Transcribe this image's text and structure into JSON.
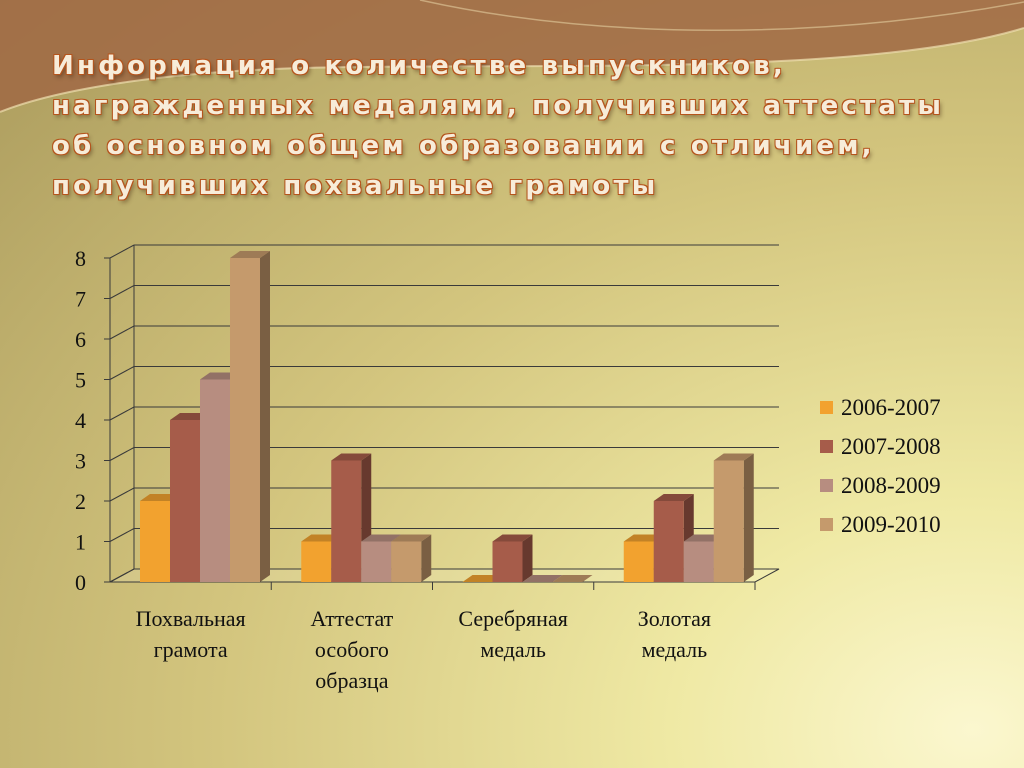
{
  "title": "Информация о количестве выпускников, награжденных медалями, получивших аттестаты об основном общем образовании с отличием, получивших похвальные грамоты",
  "colors": {
    "background": "#e6dd98",
    "swoosh": "#a36a44"
  },
  "chart_data": {
    "type": "bar",
    "style": "3d-clustered-column",
    "categories": [
      [
        "Похвальная",
        "грамота"
      ],
      [
        "Аттестат",
        "особого",
        "образца"
      ],
      [
        "Серебряная",
        "медаль"
      ],
      [
        "Золотая",
        "медаль"
      ]
    ],
    "series": [
      {
        "name": "2006-2007",
        "color": "#f2a22f",
        "values": [
          2,
          1,
          0,
          1
        ]
      },
      {
        "name": "2007-2008",
        "color": "#a65c4a",
        "values": [
          4,
          3,
          1,
          2
        ]
      },
      {
        "name": "2008-2009",
        "color": "#b78d80",
        "values": [
          5,
          1,
          0,
          1
        ]
      },
      {
        "name": "2009-2010",
        "color": "#c59a6c",
        "values": [
          8,
          1,
          0,
          3
        ]
      }
    ],
    "ylim": [
      0,
      8
    ],
    "yticks": [
      "0",
      "1",
      "2",
      "3",
      "4",
      "5",
      "6",
      "7",
      "8"
    ],
    "grid": true,
    "legend_position": "right"
  }
}
